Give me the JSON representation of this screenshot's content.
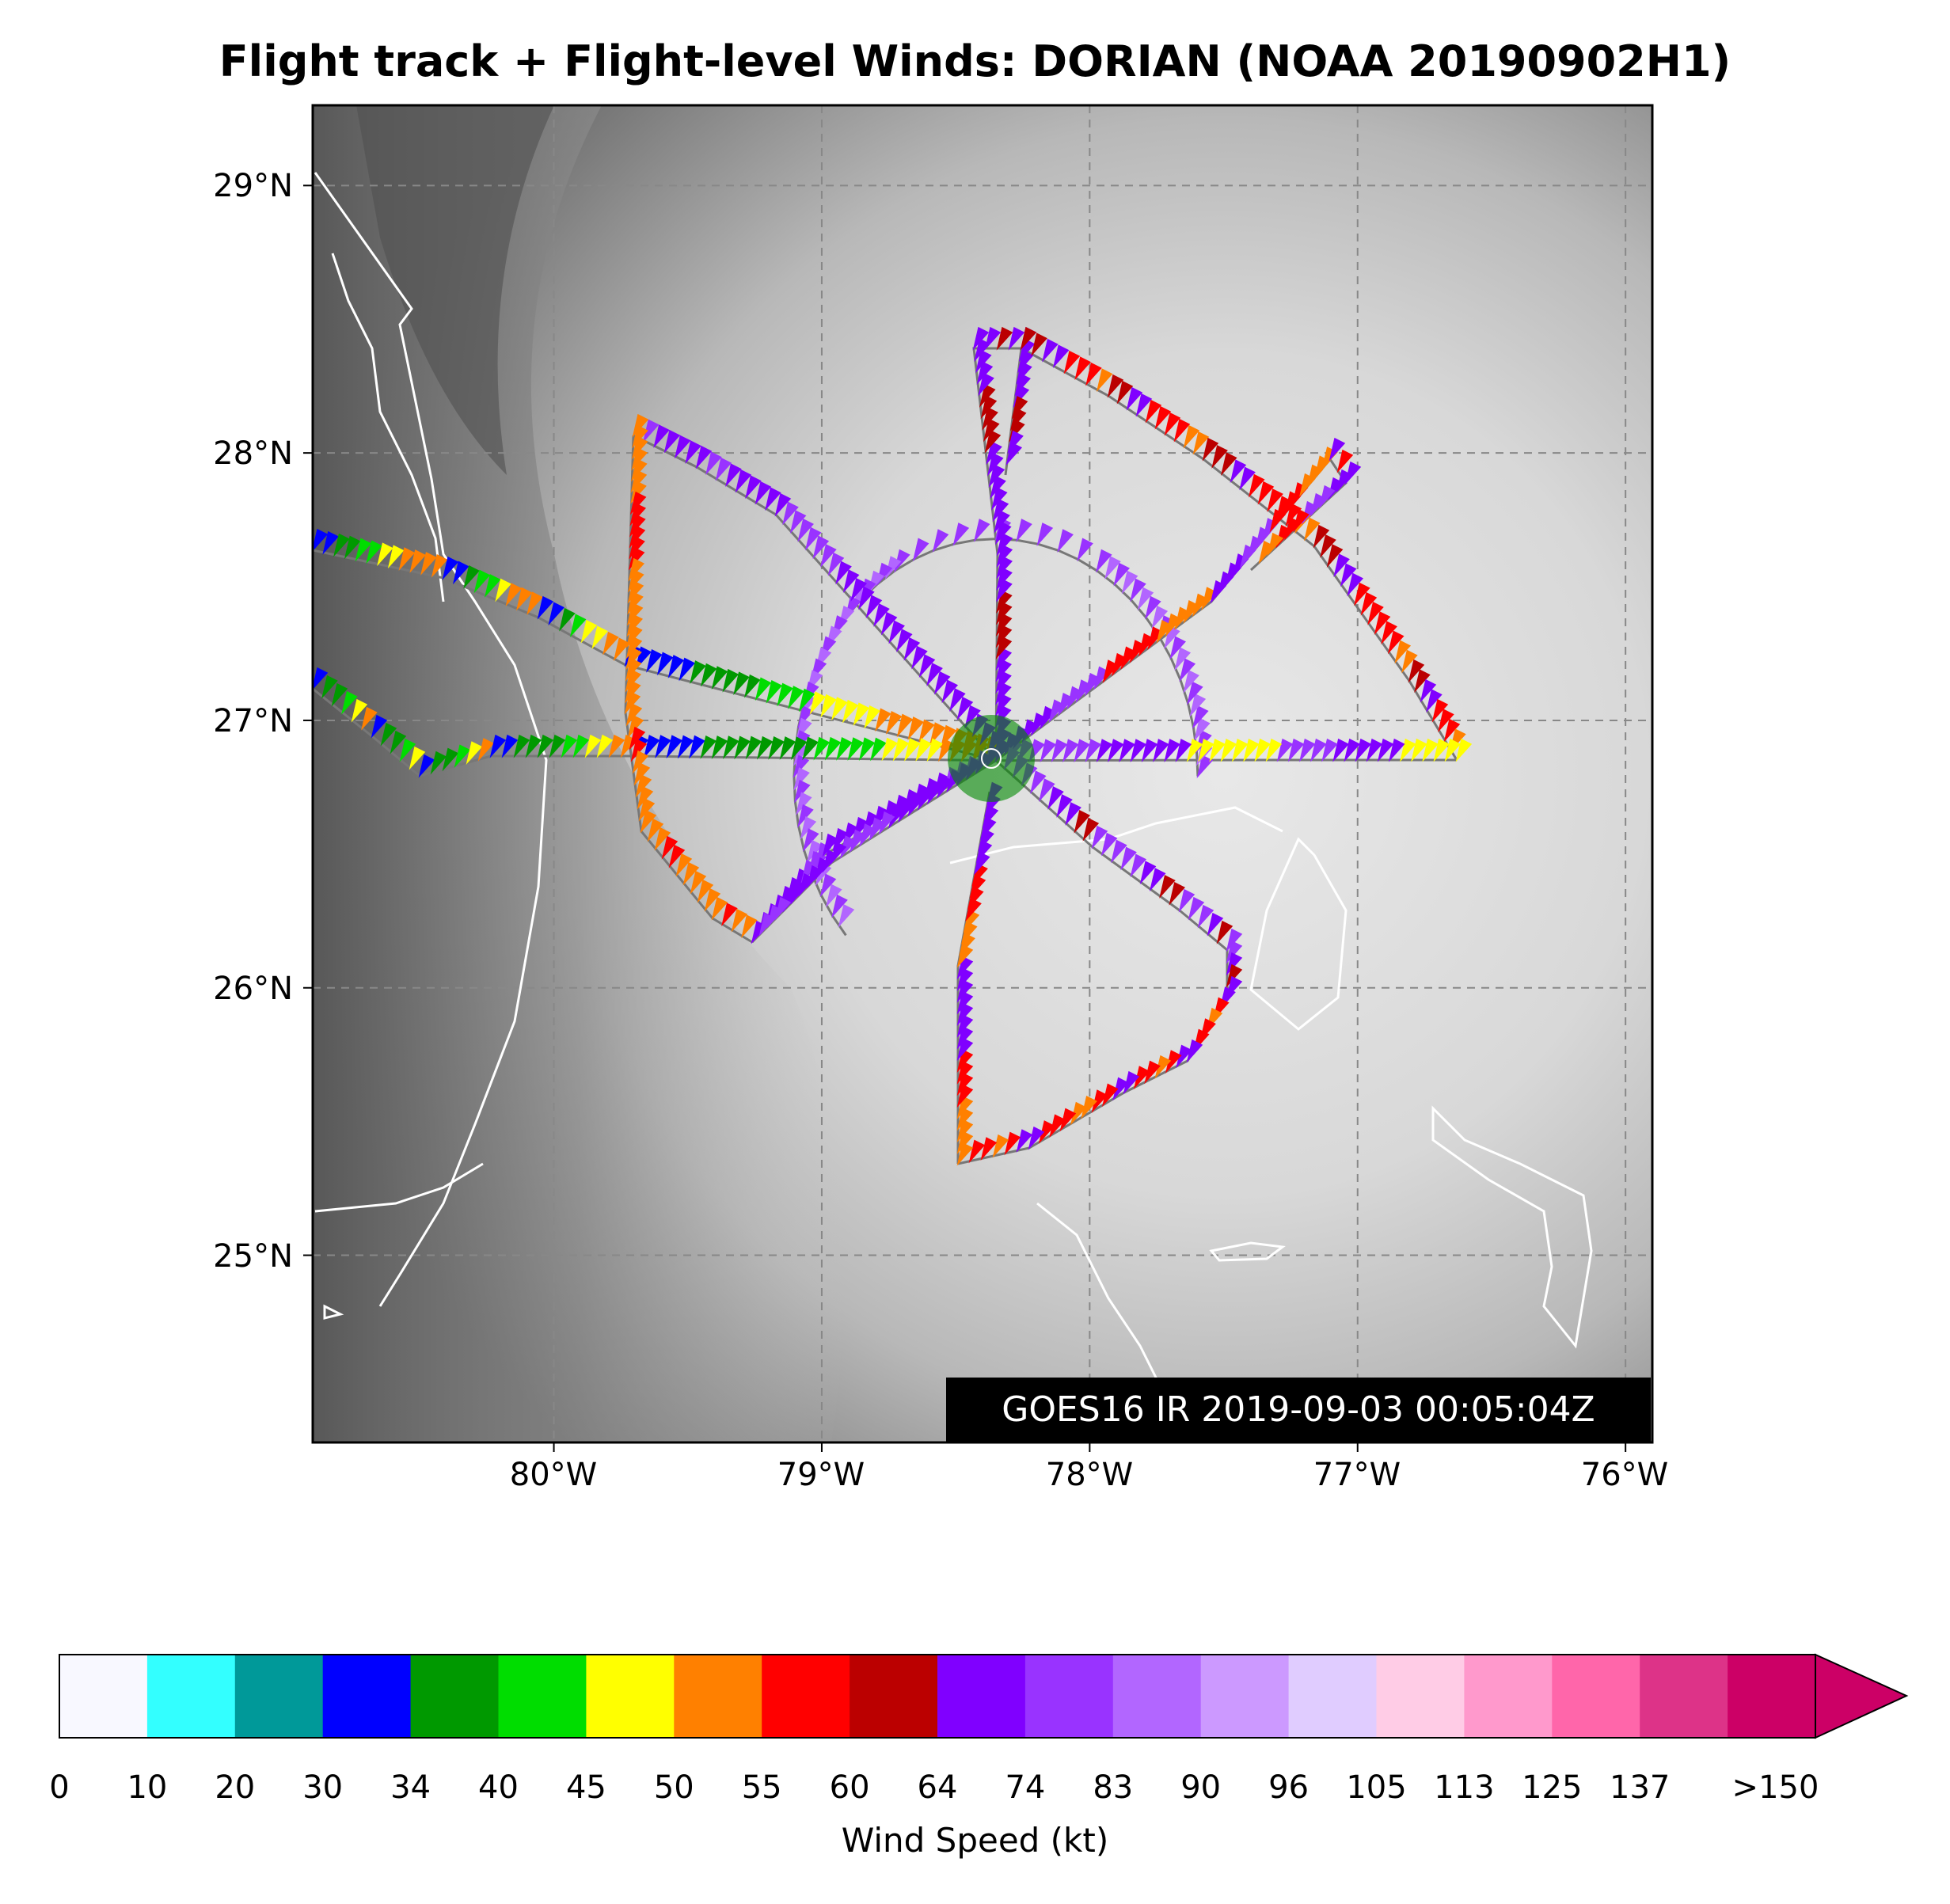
{
  "title": "Flight track + Flight-level Winds: DORIAN (NOAA 20190902H1)",
  "map": {
    "lat_labels": [
      "29°N",
      "28°N",
      "27°N",
      "26°N",
      "25°N"
    ],
    "lat_values": [
      29,
      28,
      27,
      26,
      25
    ],
    "lon_labels": [
      "80°W",
      "79°W",
      "78°W",
      "77°W",
      "76°W"
    ],
    "lon_values": [
      -80,
      -79,
      -78,
      -77,
      -76
    ],
    "extent": {
      "lon_min": -80.9,
      "lon_max": -75.9,
      "lat_min": 24.3,
      "lat_max": 29.3
    },
    "center": {
      "lon": -78.35,
      "lat": 26.85
    },
    "satellite_stamp": "GOES16 IR 2019-09-03 00:05:04Z",
    "grid": true
  },
  "colorbar": {
    "label": "Wind Speed (kt)",
    "ticks": [
      "0",
      "10",
      "20",
      "30",
      "34",
      "40",
      "45",
      "50",
      "55",
      "60",
      "64",
      "74",
      "83",
      "90",
      "96",
      "105",
      "113",
      "125",
      "137",
      ">150"
    ],
    "colors": [
      "#f8f8ff",
      "#33ffff",
      "#009999",
      "#0000ff",
      "#009900",
      "#00dd00",
      "#ffff00",
      "#ff8000",
      "#ff0000",
      "#bb0000",
      "#8000ff",
      "#9933ff",
      "#b266ff",
      "#cc99ff",
      "#e0ccff",
      "#ffcce6",
      "#ff99cc",
      "#ff66aa",
      "#dd3388",
      "#cc0066"
    ],
    "extend": "max"
  }
}
